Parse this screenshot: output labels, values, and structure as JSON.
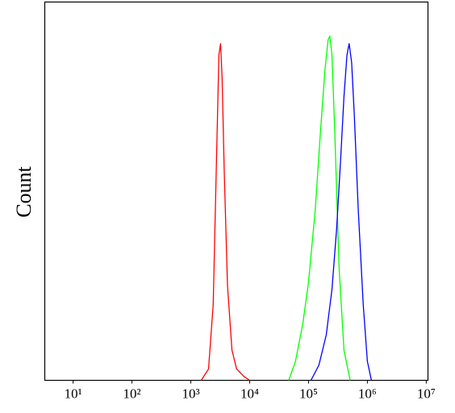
{
  "chart_data": {
    "type": "line",
    "ylabel": "Count",
    "xscale": "log",
    "grid": false,
    "xlim": [
      3.3,
      10700000
    ],
    "ylim": [
      0,
      100
    ],
    "xticks": [
      {
        "value": 10,
        "label": "10¹"
      },
      {
        "value": 100,
        "label": "10²"
      },
      {
        "value": 1000,
        "label": "10³"
      },
      {
        "value": 10000,
        "label": "10⁴"
      },
      {
        "value": 100000,
        "label": "10⁵"
      },
      {
        "value": 1000000,
        "label": "10⁶"
      },
      {
        "value": 10000000,
        "label": "10⁷"
      }
    ],
    "series": [
      {
        "color": "#ff0000",
        "x": [
          1500,
          2000,
          2400,
          2700,
          3000,
          3200,
          3400,
          3700,
          4200,
          5000,
          6000,
          8000,
          10000
        ],
        "values": [
          0,
          3,
          20,
          55,
          86,
          89,
          80,
          55,
          25,
          8,
          3,
          1,
          0
        ]
      },
      {
        "color": "#00ff00",
        "x": [
          46000,
          60000,
          80000,
          100000,
          130000,
          160000,
          190000,
          215000,
          230000,
          250000,
          280000,
          330000,
          400000,
          510000
        ],
        "values": [
          0,
          5,
          15,
          26,
          45,
          66,
          82,
          90,
          91,
          86,
          65,
          30,
          8,
          0
        ]
      },
      {
        "color": "#0000ff",
        "x": [
          110000,
          150000,
          200000,
          250000,
          300000,
          350000,
          400000,
          450000,
          490000,
          540000,
          600000,
          700000,
          850000,
          1000000,
          1170000
        ],
        "values": [
          0,
          4,
          12,
          24,
          40,
          58,
          75,
          86,
          89,
          84,
          70,
          45,
          20,
          5,
          0
        ]
      }
    ]
  }
}
